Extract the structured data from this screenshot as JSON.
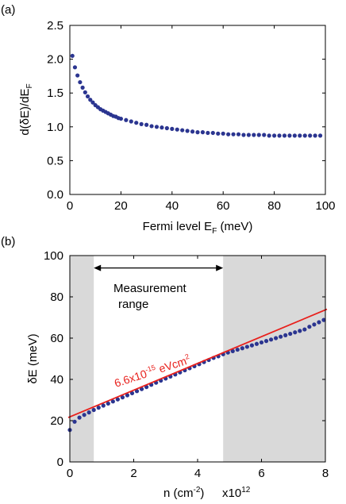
{
  "panel_labels": [
    "(a)",
    "(b)"
  ],
  "colors": {
    "points": "#2b3590",
    "fit_line": "#e8201c",
    "shade": "#d9d9d9",
    "axes": "#000000"
  },
  "chart_data": [
    {
      "type": "scatter",
      "panel": "(a)",
      "xlabel": "Fermi level E",
      "xlabel_sub": "F",
      "xlabel_tail": " (meV)",
      "ylabel": "d(δE)/dE",
      "ylabel_sub": "F",
      "xlim": [
        0,
        100
      ],
      "ylim": [
        0,
        2.5
      ],
      "xticks": [
        0,
        20,
        40,
        60,
        80,
        100
      ],
      "xtick_labels": [
        "0",
        "20",
        "40",
        "60",
        "80",
        "100"
      ],
      "yticks": [
        0,
        0.5,
        1,
        1.5,
        2,
        2.5
      ],
      "ytick_labels": [
        "0.0",
        "0.5",
        "1.0",
        "1.5",
        "2.0",
        "2.5"
      ],
      "grid": false,
      "series": [
        {
          "x": [
            1.0,
            2.0,
            3.0,
            4.0,
            5.0,
            6.0,
            7.0,
            8.0,
            9.0,
            10.0,
            11.0,
            12.0,
            13.0,
            14.0,
            15.0,
            16.0,
            17.0,
            18.0,
            19.0,
            20.0,
            22.0,
            24.0,
            26.0,
            28.0,
            30.0,
            32.0,
            34.0,
            36.0,
            38.0,
            40.0,
            42.0,
            44.0,
            46.0,
            48.0,
            50.0,
            52.0,
            54.0,
            56.0,
            58.0,
            60.0,
            62.0,
            64.0,
            66.0,
            68.0,
            70.0,
            72.0,
            74.0,
            76.0,
            78.0,
            80.0,
            82.0,
            84.0,
            86.0,
            88.0,
            90.0,
            92.0,
            94.0,
            96.0,
            98.0
          ],
          "y": [
            2.05,
            1.88,
            1.76,
            1.66,
            1.58,
            1.51,
            1.45,
            1.4,
            1.36,
            1.32,
            1.29,
            1.26,
            1.24,
            1.22,
            1.2,
            1.18,
            1.16,
            1.15,
            1.13,
            1.12,
            1.1,
            1.08,
            1.06,
            1.04,
            1.03,
            1.01,
            1.0,
            0.99,
            0.98,
            0.97,
            0.96,
            0.95,
            0.94,
            0.93,
            0.92,
            0.92,
            0.91,
            0.91,
            0.9,
            0.9,
            0.89,
            0.89,
            0.89,
            0.88,
            0.88,
            0.88,
            0.88,
            0.88,
            0.87,
            0.87,
            0.87,
            0.87,
            0.87,
            0.87,
            0.87,
            0.87,
            0.87,
            0.87,
            0.87
          ]
        }
      ]
    },
    {
      "type": "scatter",
      "panel": "(b)",
      "xlabel": "n (cm",
      "xlabel_sup": "-2",
      "xlabel_tail": ")",
      "x_multiplier": "x10",
      "x_multiplier_exp": "12",
      "ylabel": "δE   (meV)",
      "xlim": [
        0,
        8
      ],
      "ylim": [
        0,
        100
      ],
      "xticks": [
        0,
        2,
        4,
        6,
        8
      ],
      "xtick_labels": [
        "0",
        "2",
        "4",
        "6",
        "8"
      ],
      "yticks": [
        0,
        20,
        40,
        60,
        80,
        100
      ],
      "ytick_labels": [
        "0",
        "20",
        "40",
        "60",
        "80",
        "100"
      ],
      "grid": false,
      "shaded_regions": [
        [
          -0.2,
          0.75
        ],
        [
          4.8,
          8.1
        ]
      ],
      "annotation_arrow": {
        "from": 0.75,
        "to": 4.8,
        "y": 94
      },
      "annotation_text_line1": "Measurement",
      "annotation_text_line2": "range",
      "fit_label": "6.6x10",
      "fit_label_exp": "-15",
      "fit_label_tail": " eVcm",
      "fit_label_exp2": "2",
      "fit_line": {
        "x": [
          -0.05,
          8.05
        ],
        "y": [
          21.5,
          74.0
        ]
      },
      "series": [
        {
          "x": [
            0.0,
            0.15,
            0.3,
            0.45,
            0.6,
            0.75,
            0.9,
            1.05,
            1.2,
            1.35,
            1.5,
            1.65,
            1.8,
            1.95,
            2.1,
            2.25,
            2.4,
            2.55,
            2.7,
            2.85,
            3.0,
            3.15,
            3.3,
            3.45,
            3.6,
            3.75,
            3.9,
            4.05,
            4.2,
            4.35,
            4.5,
            4.65,
            4.8,
            4.95,
            5.1,
            5.25,
            5.4,
            5.55,
            5.7,
            5.85,
            6.0,
            6.15,
            6.3,
            6.45,
            6.6,
            6.75,
            6.9,
            7.05,
            7.2,
            7.35,
            7.5,
            7.65,
            7.8,
            7.95
          ],
          "y": [
            15.5,
            19.5,
            21.5,
            22.8,
            24.0,
            25.2,
            26.3,
            27.3,
            28.3,
            29.3,
            30.3,
            31.3,
            32.3,
            33.3,
            34.3,
            35.3,
            36.3,
            37.4,
            38.4,
            39.4,
            40.4,
            41.4,
            42.4,
            43.4,
            44.4,
            45.4,
            46.4,
            47.4,
            48.4,
            49.4,
            50.4,
            51.2,
            52.2,
            53.0,
            53.7,
            54.4,
            55.1,
            55.8,
            56.5,
            57.2,
            57.9,
            58.6,
            59.3,
            60.0,
            60.7,
            61.4,
            62.1,
            62.8,
            63.5,
            64.2,
            65.5,
            66.6,
            67.7,
            68.8
          ]
        }
      ]
    }
  ]
}
